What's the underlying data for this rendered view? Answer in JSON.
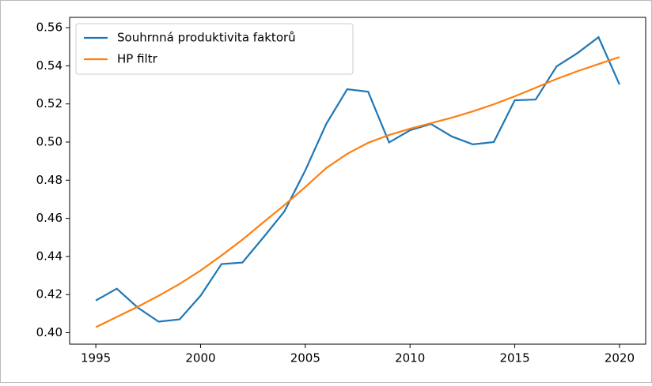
{
  "chart_data": {
    "type": "line",
    "x": [
      1995,
      1996,
      1997,
      1998,
      1999,
      2000,
      2001,
      2002,
      2003,
      2004,
      2005,
      2006,
      2007,
      2008,
      2009,
      2010,
      2011,
      2012,
      2013,
      2014,
      2015,
      2016,
      2017,
      2018,
      2019,
      2020
    ],
    "series": [
      {
        "name": "Souhrnná produktivita faktorů",
        "color": "#1f77b4",
        "values": [
          0.4169,
          0.4231,
          0.4132,
          0.4058,
          0.407,
          0.4194,
          0.436,
          0.4368,
          0.45,
          0.4636,
          0.4851,
          0.5095,
          0.5277,
          0.5264,
          0.4998,
          0.5062,
          0.5095,
          0.5029,
          0.4988,
          0.5,
          0.5219,
          0.5223,
          0.5397,
          0.5467,
          0.555,
          0.5302
        ]
      },
      {
        "name": "HP filtr",
        "color": "#ff7f0e",
        "values": [
          0.4029,
          0.4083,
          0.4136,
          0.4194,
          0.4256,
          0.4326,
          0.4405,
          0.4488,
          0.4579,
          0.4669,
          0.4764,
          0.4864,
          0.4938,
          0.4996,
          0.5037,
          0.507,
          0.5099,
          0.5128,
          0.5161,
          0.5198,
          0.524,
          0.5285,
          0.5331,
          0.5372,
          0.5409,
          0.5446
        ]
      }
    ],
    "xlim": [
      1993.75,
      2021.25
    ],
    "xticks": [
      1995,
      2000,
      2005,
      2010,
      2015,
      2020
    ],
    "ylim": [
      0.394,
      0.5654
    ],
    "yticks": [
      {
        "value": 0.4,
        "label": "0.40"
      },
      {
        "value": 0.42,
        "label": "0.42"
      },
      {
        "value": 0.44,
        "label": "0.44"
      },
      {
        "value": 0.46,
        "label": "0.46"
      },
      {
        "value": 0.48,
        "label": "0.48"
      },
      {
        "value": 0.5,
        "label": "0.50"
      },
      {
        "value": 0.52,
        "label": "0.52"
      },
      {
        "value": 0.54,
        "label": "0.54"
      },
      {
        "value": 0.56,
        "label": "0.56"
      }
    ],
    "legend": "upper left"
  }
}
